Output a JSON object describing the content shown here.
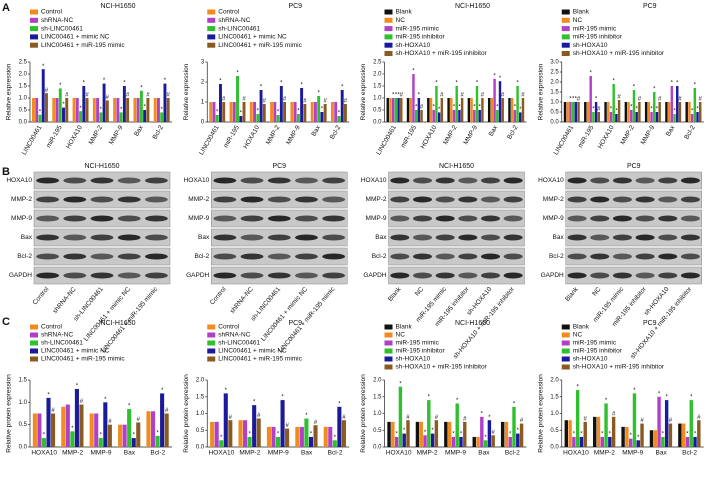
{
  "panels": [
    "A",
    "B",
    "C"
  ],
  "chart_data": [
    {
      "type": "bar",
      "title": "NCI-H1650",
      "ylabel": "Relative expression",
      "categories": [
        "LINC00461",
        "miR-195",
        "HOXA10",
        "MMP-2",
        "MMP-9",
        "Bax",
        "Bcl-2"
      ],
      "ylim": [
        0,
        2.5
      ],
      "yticks": [
        {
          "value": 0,
          "label": "0.0"
        },
        0.5,
        {
          "value": 1,
          "label": "1.0"
        },
        1.5,
        {
          "value": 2,
          "label": "2.0"
        },
        2.5
      ],
      "series": [
        {
          "name": "Control",
          "color": "#f28a1e",
          "values": [
            1.0,
            1.0,
            1.0,
            1.0,
            1.0,
            1.0,
            1.0
          ]
        },
        {
          "name": "shRNA-NC",
          "color": "#b040c8",
          "values": [
            1.0,
            1.0,
            1.0,
            1.0,
            1.0,
            1.0,
            1.0
          ]
        },
        {
          "name": "sh-LINC00461",
          "color": "#2ec02e",
          "marker": "*",
          "values": [
            0.3,
            1.4,
            0.45,
            0.4,
            0.4,
            1.3,
            0.4
          ]
        },
        {
          "name": "LINC00461 + mimic NC",
          "color": "#1a1a9a",
          "marker": "*",
          "values": [
            2.2,
            0.6,
            1.5,
            1.6,
            1.5,
            0.5,
            1.6
          ]
        },
        {
          "name": "LINC00461 + miR-195 mimic",
          "color": "#8a5a20",
          "marker": "#",
          "values": [
            1.2,
            1.0,
            1.0,
            0.9,
            1.0,
            1.0,
            1.0
          ]
        }
      ]
    },
    {
      "type": "bar",
      "title": "PC9",
      "ylabel": "Relative expression",
      "categories": [
        "LINC00461",
        "miR-195",
        "HOXA10",
        "MMP-2",
        "MMP-9",
        "Bax",
        "Bcl-2"
      ],
      "ylim": [
        0,
        3
      ],
      "yticks": [
        0,
        1,
        2,
        3
      ],
      "series": [
        {
          "name": "Control",
          "color": "#f28a1e",
          "values": [
            1.0,
            1.0,
            1.0,
            1.0,
            1.0,
            1.0,
            1.0
          ]
        },
        {
          "name": "shRNA-NC",
          "color": "#b040c8",
          "values": [
            1.0,
            1.0,
            1.0,
            1.0,
            1.0,
            1.0,
            1.0
          ]
        },
        {
          "name": "sh-LINC00461",
          "color": "#2ec02e",
          "marker": "*",
          "values": [
            0.35,
            2.3,
            0.4,
            0.35,
            0.4,
            1.3,
            0.3
          ]
        },
        {
          "name": "LINC00461 + mimic NC",
          "color": "#1a1a9a",
          "marker": "*",
          "values": [
            1.9,
            0.3,
            1.6,
            1.8,
            1.7,
            0.5,
            1.6
          ]
        },
        {
          "name": "LINC00461 + miR-195 mimic",
          "color": "#8a5a20",
          "marker": "#",
          "values": [
            1.0,
            1.0,
            0.9,
            1.0,
            0.9,
            0.9,
            0.9
          ]
        }
      ]
    },
    {
      "type": "bar",
      "title": "NCI-H1650",
      "ylabel": "Relative expression",
      "categories": [
        "LINC00461",
        "miR-195",
        "HOXA10",
        "MMP-2",
        "MMP-9",
        "Bax",
        "Bcl-2"
      ],
      "ylim": [
        0,
        2.5
      ],
      "yticks": [
        {
          "value": 0,
          "label": "0.0"
        },
        0.5,
        {
          "value": 1,
          "label": "1.0"
        },
        1.5,
        {
          "value": 2,
          "label": "2.0"
        },
        2.5
      ],
      "series": [
        {
          "name": "Blank",
          "color": "#111111",
          "values": [
            1.0,
            1.0,
            1.0,
            1.0,
            1.0,
            1.0,
            1.0
          ]
        },
        {
          "name": "NC",
          "color": "#f28a1e",
          "values": [
            1.0,
            1.0,
            1.0,
            1.0,
            1.0,
            1.0,
            1.0
          ]
        },
        {
          "name": "miR-195 mimic",
          "color": "#b040c8",
          "marker": "*",
          "values": [
            1.0,
            2.0,
            0.5,
            0.5,
            0.5,
            1.8,
            0.5
          ]
        },
        {
          "name": "miR-195 inhibitor",
          "color": "#2ec02e",
          "marker": "*",
          "values": [
            1.0,
            0.5,
            1.5,
            1.5,
            1.5,
            0.5,
            1.5
          ]
        },
        {
          "name": "sh-HOXA10",
          "color": "#1a1aa0",
          "marker": "*",
          "values": [
            1.0,
            1.0,
            0.4,
            0.5,
            0.5,
            1.7,
            0.4
          ]
        },
        {
          "name": "sh-HOXA10 + miR-195 inhibitor",
          "color": "#8a5a20",
          "marker": "#",
          "values": [
            1.0,
            0.5,
            1.0,
            1.0,
            1.0,
            1.0,
            1.0
          ]
        }
      ]
    },
    {
      "type": "bar",
      "title": "PC9",
      "ylabel": "Relative expression",
      "categories": [
        "LINC00461",
        "miR-195",
        "HOXA10",
        "MMP-2",
        "MMP-9",
        "Bax",
        "Bcl-2"
      ],
      "ylim": [
        0,
        3
      ],
      "yticks": [
        {
          "value": 0,
          "label": "0.0"
        },
        0.5,
        {
          "value": 1,
          "label": "1.0"
        },
        1.5,
        {
          "value": 2,
          "label": "2.0"
        },
        2.5,
        {
          "value": 3,
          "label": "3.0"
        }
      ],
      "series": [
        {
          "name": "Blank",
          "color": "#111111",
          "values": [
            1.0,
            1.0,
            1.0,
            1.0,
            1.0,
            1.0,
            1.0
          ]
        },
        {
          "name": "NC",
          "color": "#f28a1e",
          "values": [
            1.0,
            1.0,
            1.0,
            1.0,
            1.0,
            1.0,
            1.0
          ]
        },
        {
          "name": "miR-195 mimic",
          "color": "#b040c8",
          "marker": "*",
          "values": [
            1.0,
            2.3,
            0.5,
            0.6,
            0.5,
            1.8,
            0.4
          ]
        },
        {
          "name": "miR-195 inhibitor",
          "color": "#2ec02e",
          "marker": "*",
          "values": [
            1.0,
            0.5,
            1.9,
            1.6,
            1.5,
            0.4,
            1.7
          ]
        },
        {
          "name": "sh-HOXA10",
          "color": "#1a1aa0",
          "marker": "*",
          "values": [
            1.0,
            1.0,
            0.4,
            0.5,
            0.5,
            1.8,
            0.5
          ]
        },
        {
          "name": "sh-HOXA10 + miR-195 inhibitor",
          "color": "#8a5a20",
          "marker": "#",
          "values": [
            1.0,
            0.5,
            1.1,
            1.0,
            1.0,
            1.0,
            1.0
          ]
        }
      ]
    },
    {
      "type": "bar",
      "title": "NCI-H1650",
      "ylabel": "Relative protein expression",
      "categories": [
        "HOXA10",
        "MMP-2",
        "MMP-9",
        "Bax",
        "Bcl-2"
      ],
      "ylim": [
        0,
        1.5
      ],
      "yticks": [
        {
          "value": 0,
          "label": "0.0"
        },
        0.5,
        {
          "value": 1,
          "label": "1.0"
        },
        1.5
      ],
      "series": [
        {
          "name": "Control",
          "color": "#f28a1e",
          "values": [
            0.75,
            0.9,
            0.75,
            0.5,
            0.8
          ]
        },
        {
          "name": "shRNA-NC",
          "color": "#b040c8",
          "values": [
            0.75,
            0.95,
            0.75,
            0.5,
            0.8
          ]
        },
        {
          "name": "sh-LINC00461",
          "color": "#2ec02e",
          "marker": "*",
          "values": [
            0.2,
            0.35,
            0.2,
            0.85,
            0.25
          ]
        },
        {
          "name": "LINC00461 + mimic NC",
          "color": "#1a1a9a",
          "marker": "*",
          "values": [
            1.1,
            1.3,
            1.0,
            0.2,
            1.2
          ]
        },
        {
          "name": "LINC00461 + miR-195 mimic",
          "color": "#8a5a20",
          "marker": "#",
          "values": [
            0.75,
            0.95,
            0.5,
            0.55,
            0.75
          ]
        }
      ]
    },
    {
      "type": "bar",
      "title": "PC9",
      "ylabel": "Relative protein expression",
      "categories": [
        "HOXA10",
        "MMP-2",
        "MMP-9",
        "Bax",
        "Bcl-2"
      ],
      "ylim": [
        0,
        2
      ],
      "yticks": [
        {
          "value": 0,
          "label": "0.0"
        },
        0.5,
        {
          "value": 1,
          "label": "1.0"
        },
        1.5,
        {
          "value": 2,
          "label": "2.0"
        }
      ],
      "series": [
        {
          "name": "Control",
          "color": "#f28a1e",
          "values": [
            0.75,
            0.8,
            0.6,
            0.6,
            0.6
          ]
        },
        {
          "name": "shRNA-NC",
          "color": "#b040c8",
          "values": [
            0.75,
            0.8,
            0.6,
            0.6,
            0.6
          ]
        },
        {
          "name": "sh-LINC00461",
          "color": "#2ec02e",
          "marker": "*",
          "values": [
            0.2,
            0.3,
            0.3,
            0.85,
            0.2
          ]
        },
        {
          "name": "LINC00461 + mimic NC",
          "color": "#1a1a9a",
          "marker": "*",
          "values": [
            1.6,
            1.25,
            1.4,
            0.3,
            1.2
          ]
        },
        {
          "name": "LINC00461 + miR-195 mimic",
          "color": "#8a5a20",
          "marker": "#",
          "values": [
            0.8,
            0.85,
            0.55,
            0.65,
            0.8
          ]
        }
      ]
    },
    {
      "type": "bar",
      "title": "NCI-H1650",
      "ylabel": "Relative protein expression",
      "categories": [
        "HOXA10",
        "MMP-2",
        "MMP-9",
        "Bax",
        "Bcl-2"
      ],
      "ylim": [
        0,
        2
      ],
      "yticks": [
        {
          "value": 0,
          "label": "0.0"
        },
        0.5,
        {
          "value": 1,
          "label": "1.0"
        },
        1.5,
        {
          "value": 2,
          "label": "2.0"
        }
      ],
      "series": [
        {
          "name": "Blank",
          "color": "#111111",
          "values": [
            0.75,
            0.75,
            0.75,
            0.3,
            0.75
          ]
        },
        {
          "name": "NC",
          "color": "#f28a1e",
          "values": [
            0.75,
            0.75,
            0.75,
            0.3,
            0.75
          ]
        },
        {
          "name": "miR-195 mimic",
          "color": "#b040c8",
          "marker": "*",
          "values": [
            0.3,
            0.35,
            0.3,
            0.9,
            0.3
          ]
        },
        {
          "name": "miR-195 inhibitor",
          "color": "#2ec02e",
          "marker": "*",
          "values": [
            1.8,
            1.4,
            1.3,
            0.2,
            1.2
          ]
        },
        {
          "name": "sh-HOXA10",
          "color": "#1a1aa0",
          "marker": "*",
          "values": [
            0.4,
            0.4,
            0.3,
            0.8,
            0.4
          ]
        },
        {
          "name": "sh-HOXA10 + miR-195 inhibitor",
          "color": "#8a5a20",
          "marker": "#",
          "values": [
            0.8,
            0.8,
            0.75,
            0.35,
            0.7
          ]
        }
      ]
    },
    {
      "type": "bar",
      "title": "PC9",
      "ylabel": "Relative protein expression",
      "categories": [
        "HOXA10",
        "MMP-2",
        "MMP-9",
        "Bax",
        "Bcl-2"
      ],
      "ylim": [
        0,
        2
      ],
      "yticks": [
        {
          "value": 0,
          "label": "0.0"
        },
        0.5,
        {
          "value": 1,
          "label": "1.0"
        },
        1.5,
        {
          "value": 2,
          "label": "2.0"
        }
      ],
      "series": [
        {
          "name": "Blank",
          "color": "#111111",
          "values": [
            0.8,
            0.9,
            0.6,
            0.5,
            0.7
          ]
        },
        {
          "name": "NC",
          "color": "#f28a1e",
          "values": [
            0.8,
            0.9,
            0.6,
            0.5,
            0.7
          ]
        },
        {
          "name": "miR-195 mimic",
          "color": "#b040c8",
          "marker": "*",
          "values": [
            0.3,
            0.3,
            0.25,
            1.5,
            0.3
          ]
        },
        {
          "name": "miR-195 inhibitor",
          "color": "#2ec02e",
          "marker": "*",
          "values": [
            1.7,
            1.3,
            1.6,
            0.3,
            1.4
          ]
        },
        {
          "name": "sh-HOXA10",
          "color": "#1a1aa0",
          "marker": "*",
          "values": [
            0.3,
            0.3,
            0.2,
            1.4,
            0.3
          ]
        },
        {
          "name": "sh-HOXA10 + miR-195 inhibitor",
          "color": "#8a5a20",
          "marker": "#",
          "values": [
            0.75,
            0.9,
            0.7,
            0.7,
            0.8
          ]
        }
      ]
    }
  ],
  "blots": [
    {
      "title": "NCI-H1650",
      "rows": [
        "HOXA10",
        "MMP-2",
        "MMP-9",
        "Bax",
        "Bcl-2",
        "GAPDH"
      ],
      "lanes": [
        "Control",
        "shRNA-NC",
        "sh-LINC00461",
        "LINC00461 + mimic NC",
        "LINC00461 + miR-195 mimic"
      ]
    },
    {
      "title": "PC9",
      "rows": [
        "HOXA10",
        "MMP-2",
        "MMP-9",
        "Bax",
        "Bcl-2",
        "GAPDH"
      ],
      "lanes": [
        "Control",
        "shRNA-NC",
        "sh-LINC00461",
        "LINC00461 + mimic NC",
        "LINC00461 + miR-195 mimic"
      ]
    },
    {
      "title": "NCI-H1650",
      "rows": [
        "HOXA10",
        "MMP-2",
        "MMP-9",
        "Bax",
        "Bcl-2",
        "GAPDH"
      ],
      "lanes": [
        "Blank",
        "NC",
        "miR-195 mimic",
        "miR-195 inhibitor",
        "sh-HOXA10",
        "sh-HOXA10 + miR-195 inhibitor"
      ]
    },
    {
      "title": "PC9",
      "rows": [
        "HOXA10",
        "MMP-2",
        "MMP-9",
        "Bax",
        "Bcl-2",
        "GAPDH"
      ],
      "lanes": [
        "Blank",
        "NC",
        "miR-195 mimic",
        "miR-195 inhibitor",
        "sh-HOXA10",
        "sh-HOXA10 + miR-195 inhibitor"
      ]
    }
  ]
}
